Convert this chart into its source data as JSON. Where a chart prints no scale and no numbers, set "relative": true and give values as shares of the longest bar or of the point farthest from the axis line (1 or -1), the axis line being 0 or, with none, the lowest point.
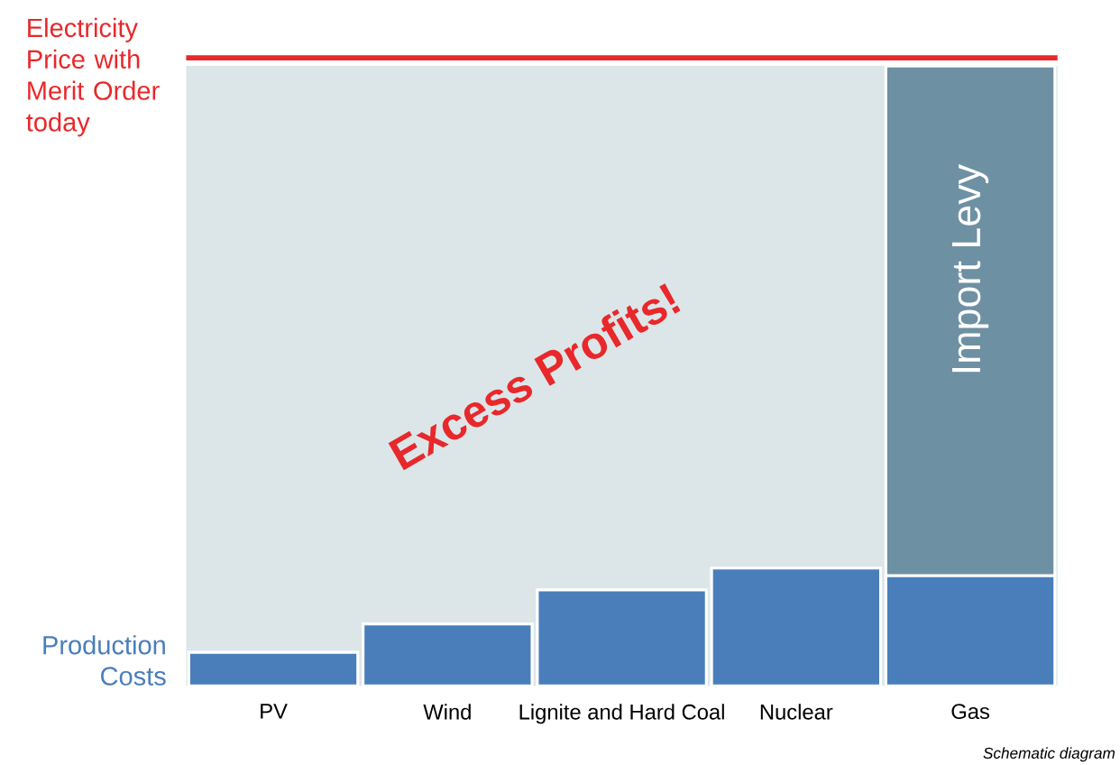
{
  "chart_data": {
    "type": "bar",
    "relative": true,
    "stacked": true,
    "categories": [
      "PV",
      "Wind",
      "Lignite and Hard Coal",
      "Nuclear",
      "Gas"
    ],
    "series": [
      {
        "name": "Production Costs",
        "color": "#4a7ebb",
        "values": [
          0.054,
          0.1,
          0.155,
          0.19,
          0.178
        ]
      },
      {
        "name": "Import Levy",
        "color": "#6e90a3",
        "values": [
          null,
          null,
          null,
          null,
          0.822
        ]
      }
    ],
    "bands": [
      {
        "axis": "y",
        "from": 0,
        "to": 1,
        "label": "Excess Profits!",
        "color": "#dce6e9"
      }
    ],
    "ref_lines": [
      {
        "axis": "y",
        "value": 1.013,
        "label": "Electricity Price with Merit Order today",
        "color": "#e8282b"
      }
    ],
    "annotations": [
      "Schematic diagram"
    ]
  }
}
